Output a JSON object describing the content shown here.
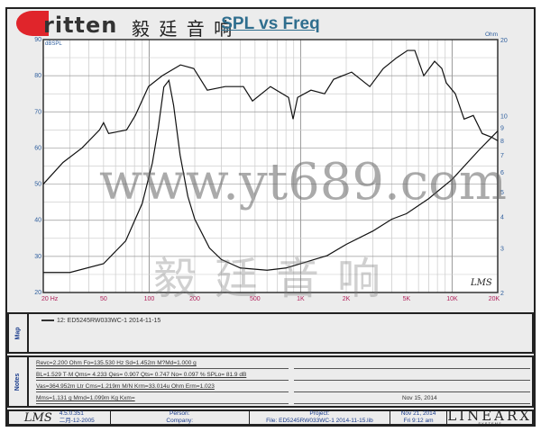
{
  "logo": {
    "brand": "ritten",
    "chinese": "毅 廷 音 响"
  },
  "chart_data": {
    "type": "line",
    "title": "SPL vs Freq",
    "x_scale": "log",
    "xlim": [
      20,
      20000
    ],
    "x_ticks": [
      "20  Hz",
      "50",
      "100",
      "200",
      "500",
      "1K",
      "2K",
      "5K",
      "10K",
      "20K"
    ],
    "ylabel": "dBSPL",
    "ylim": [
      20,
      90
    ],
    "y_ticks": [
      20,
      30,
      40,
      50,
      60,
      70,
      80,
      90
    ],
    "y2label": "Ohm",
    "y2_scale": "log",
    "y2lim": [
      2,
      20
    ],
    "y2_ticks": [
      2,
      3,
      4,
      5,
      6,
      7,
      8,
      9,
      10,
      20
    ],
    "grid": true,
    "series": [
      {
        "axis": "left",
        "x": [
          20,
          27,
          36,
          47,
          50,
          54,
          71,
          81,
          99,
          122,
          161,
          197,
          242,
          318,
          419,
          481,
          632,
          832,
          891,
          955,
          1170,
          1440,
          1650,
          2170,
          2860,
          3510,
          4310,
          5080,
          5670,
          6500,
          7660,
          8550,
          9160,
          10500,
          12000,
          13800,
          15800,
          18200,
          20000
        ],
        "y": [
          50,
          56,
          60,
          65,
          67,
          64,
          65,
          69,
          77,
          80,
          83,
          82,
          76,
          77,
          77,
          73,
          77,
          74,
          68,
          74,
          76,
          75,
          79,
          81,
          77,
          82,
          85,
          87,
          87,
          80,
          84,
          82,
          78,
          75,
          68,
          69,
          64,
          63,
          62
        ]
      },
      {
        "axis": "right",
        "x": [
          20,
          30,
          50,
          70,
          90,
          105,
          115,
          125,
          135,
          145,
          160,
          180,
          200,
          250,
          300,
          400,
          600,
          800,
          1000,
          1500,
          2000,
          3000,
          4000,
          5000,
          7000,
          10000,
          15000,
          20000
        ],
        "y": [
          2.4,
          2.4,
          2.6,
          3.2,
          4.5,
          6.5,
          9,
          13,
          13.8,
          11,
          7,
          4.8,
          3.9,
          3.0,
          2.7,
          2.5,
          2.45,
          2.5,
          2.6,
          2.8,
          3.1,
          3.5,
          3.9,
          4.1,
          4.7,
          5.6,
          7.3,
          8.7
        ]
      }
    ],
    "signature": "LMS"
  },
  "map": {
    "label": "Map",
    "entry": "12: ED5245RW033WC-1    2014-11-15"
  },
  "notes": {
    "label": "Notes",
    "lines": [
      "Revc=2.200 Ohm  Fo=135.530 Hz  Sd=1.452m M?Md=1.000 g",
      "BL=1.529 T·M  Qms= 4.233  Qes= 0.907  Qts= 0.747  No= 0.097 %  SPLo= 81.9 dB",
      "Vas=364.952m Ltr  Cms=1.219m M/N  Krm=33.014u Ohm  Erm=1.023",
      "Mms=1.131 g  Mmd=1.099m Kg  Kxm="
    ],
    "right_line4": "Nov 15, 2014"
  },
  "footer": {
    "logo": "LMS",
    "version": "4.5.0.351",
    "build": "二月-12-2005",
    "person": "Person:",
    "company": "Company:",
    "project": "Project:",
    "file": "File: ED5245RW033WC-1   2014-11-15.lib",
    "date": "Nov 21, 2014",
    "time": "Fri  9:12 am",
    "brand": "LINEARX",
    "brand_sub": "S  Y  S  T  E  M  S"
  },
  "watermark": {
    "cn": "毅廷音响",
    "url": "www.yt689.com"
  }
}
